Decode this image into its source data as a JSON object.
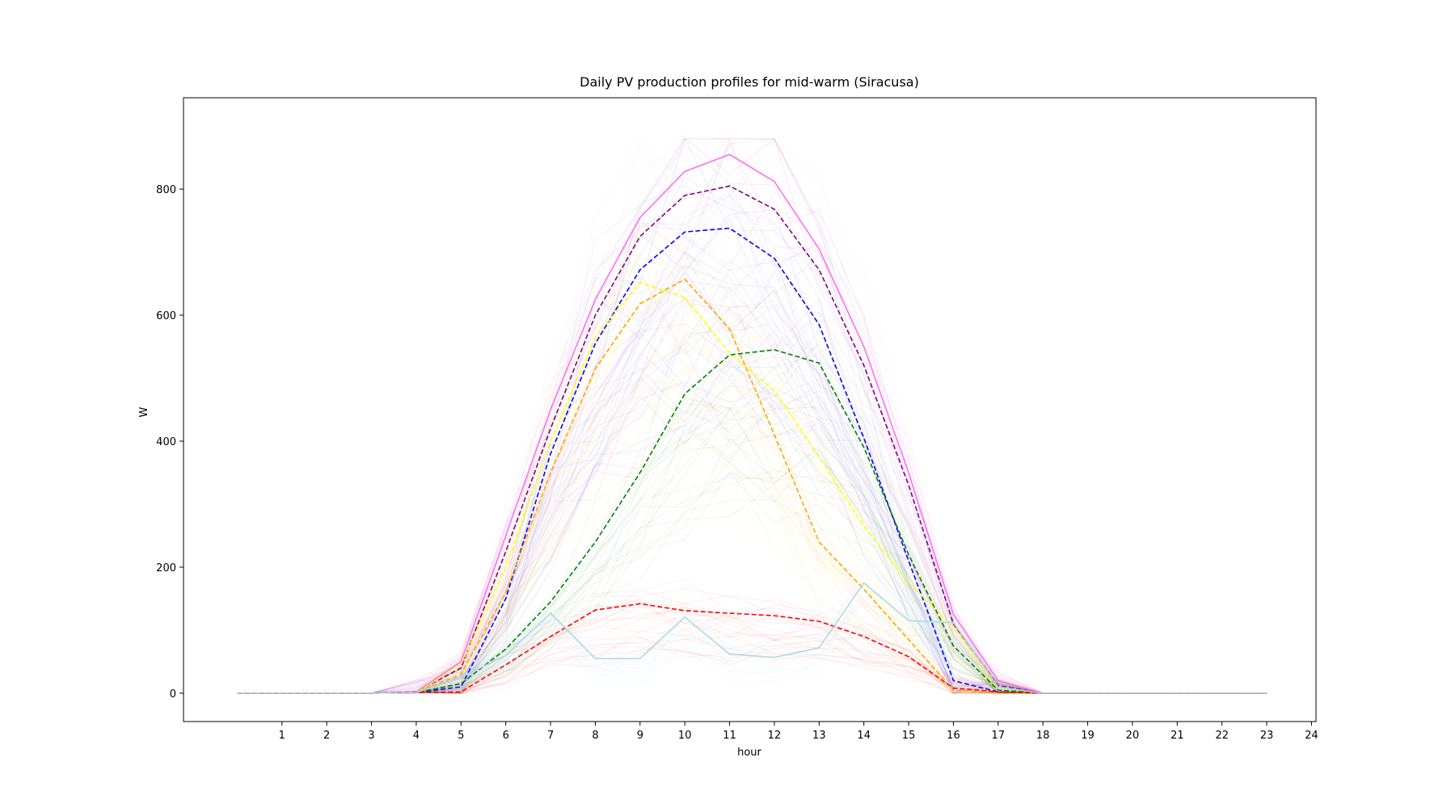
{
  "chart_data": {
    "type": "line",
    "title": "Daily PV production profiles for mid-warm (Siracusa)",
    "xlabel": "hour",
    "ylabel": "W",
    "xlim": [
      -1.2,
      24.1
    ],
    "ylim": [
      -45,
      945
    ],
    "x_ticks": [
      1,
      2,
      3,
      4,
      5,
      6,
      7,
      8,
      9,
      10,
      11,
      12,
      13,
      14,
      15,
      16,
      17,
      18,
      19,
      20,
      21,
      22,
      23,
      24
    ],
    "y_ticks": [
      0,
      200,
      400,
      600,
      800
    ],
    "grid": false,
    "legend": "none",
    "x": [
      0,
      1,
      2,
      3,
      4,
      5,
      6,
      7,
      8,
      9,
      10,
      11,
      12,
      13,
      14,
      15,
      16,
      17,
      18,
      19,
      20,
      21,
      22,
      23
    ],
    "series": [
      {
        "color": "#ff6ef5",
        "style": "solid",
        "values": [
          0,
          0,
          0,
          0,
          2,
          50,
          250,
          450,
          625,
          755,
          828,
          855,
          812,
          705,
          550,
          350,
          125,
          20,
          0,
          0,
          0,
          0,
          0,
          0
        ]
      },
      {
        "color": "#800080",
        "style": "dashed",
        "values": [
          0,
          0,
          0,
          0,
          2,
          40,
          225,
          420,
          600,
          725,
          790,
          805,
          768,
          672,
          520,
          330,
          110,
          12,
          0,
          0,
          0,
          0,
          0,
          0
        ]
      },
      {
        "color": "#0000ff",
        "style": "dashed",
        "values": [
          0,
          0,
          0,
          0,
          1,
          10,
          150,
          380,
          555,
          672,
          732,
          738,
          690,
          585,
          405,
          210,
          20,
          2,
          0,
          0,
          0,
          0,
          0,
          0
        ]
      },
      {
        "color": "#ffff00",
        "style": "dashed",
        "values": [
          0,
          0,
          0,
          0,
          1,
          45,
          200,
          400,
          565,
          652,
          628,
          540,
          480,
          375,
          265,
          175,
          105,
          5,
          0,
          0,
          0,
          0,
          0,
          0
        ]
      },
      {
        "color": "#ffa500",
        "style": "dashed",
        "values": [
          0,
          0,
          0,
          0,
          1,
          30,
          160,
          350,
          515,
          618,
          657,
          578,
          410,
          240,
          165,
          85,
          5,
          0,
          0,
          0,
          0,
          0,
          0,
          0
        ]
      },
      {
        "color": "#008000",
        "style": "dashed",
        "values": [
          0,
          0,
          0,
          0,
          1,
          15,
          70,
          145,
          240,
          350,
          475,
          537,
          545,
          524,
          390,
          220,
          75,
          5,
          0,
          0,
          0,
          0,
          0,
          0
        ]
      },
      {
        "color": "#ff0000",
        "style": "dashed",
        "values": [
          0,
          0,
          0,
          0,
          1,
          2,
          45,
          90,
          132,
          142,
          131,
          127,
          123,
          114,
          90,
          58,
          8,
          2,
          0,
          0,
          0,
          0,
          0,
          0
        ]
      },
      {
        "color": "#add8e6",
        "style": "solid",
        "values": [
          0,
          0,
          0,
          0,
          1,
          25,
          60,
          127,
          55,
          55,
          121,
          62,
          57,
          72,
          175,
          115,
          112,
          10,
          0,
          0,
          0,
          0,
          0,
          0
        ]
      }
    ]
  }
}
